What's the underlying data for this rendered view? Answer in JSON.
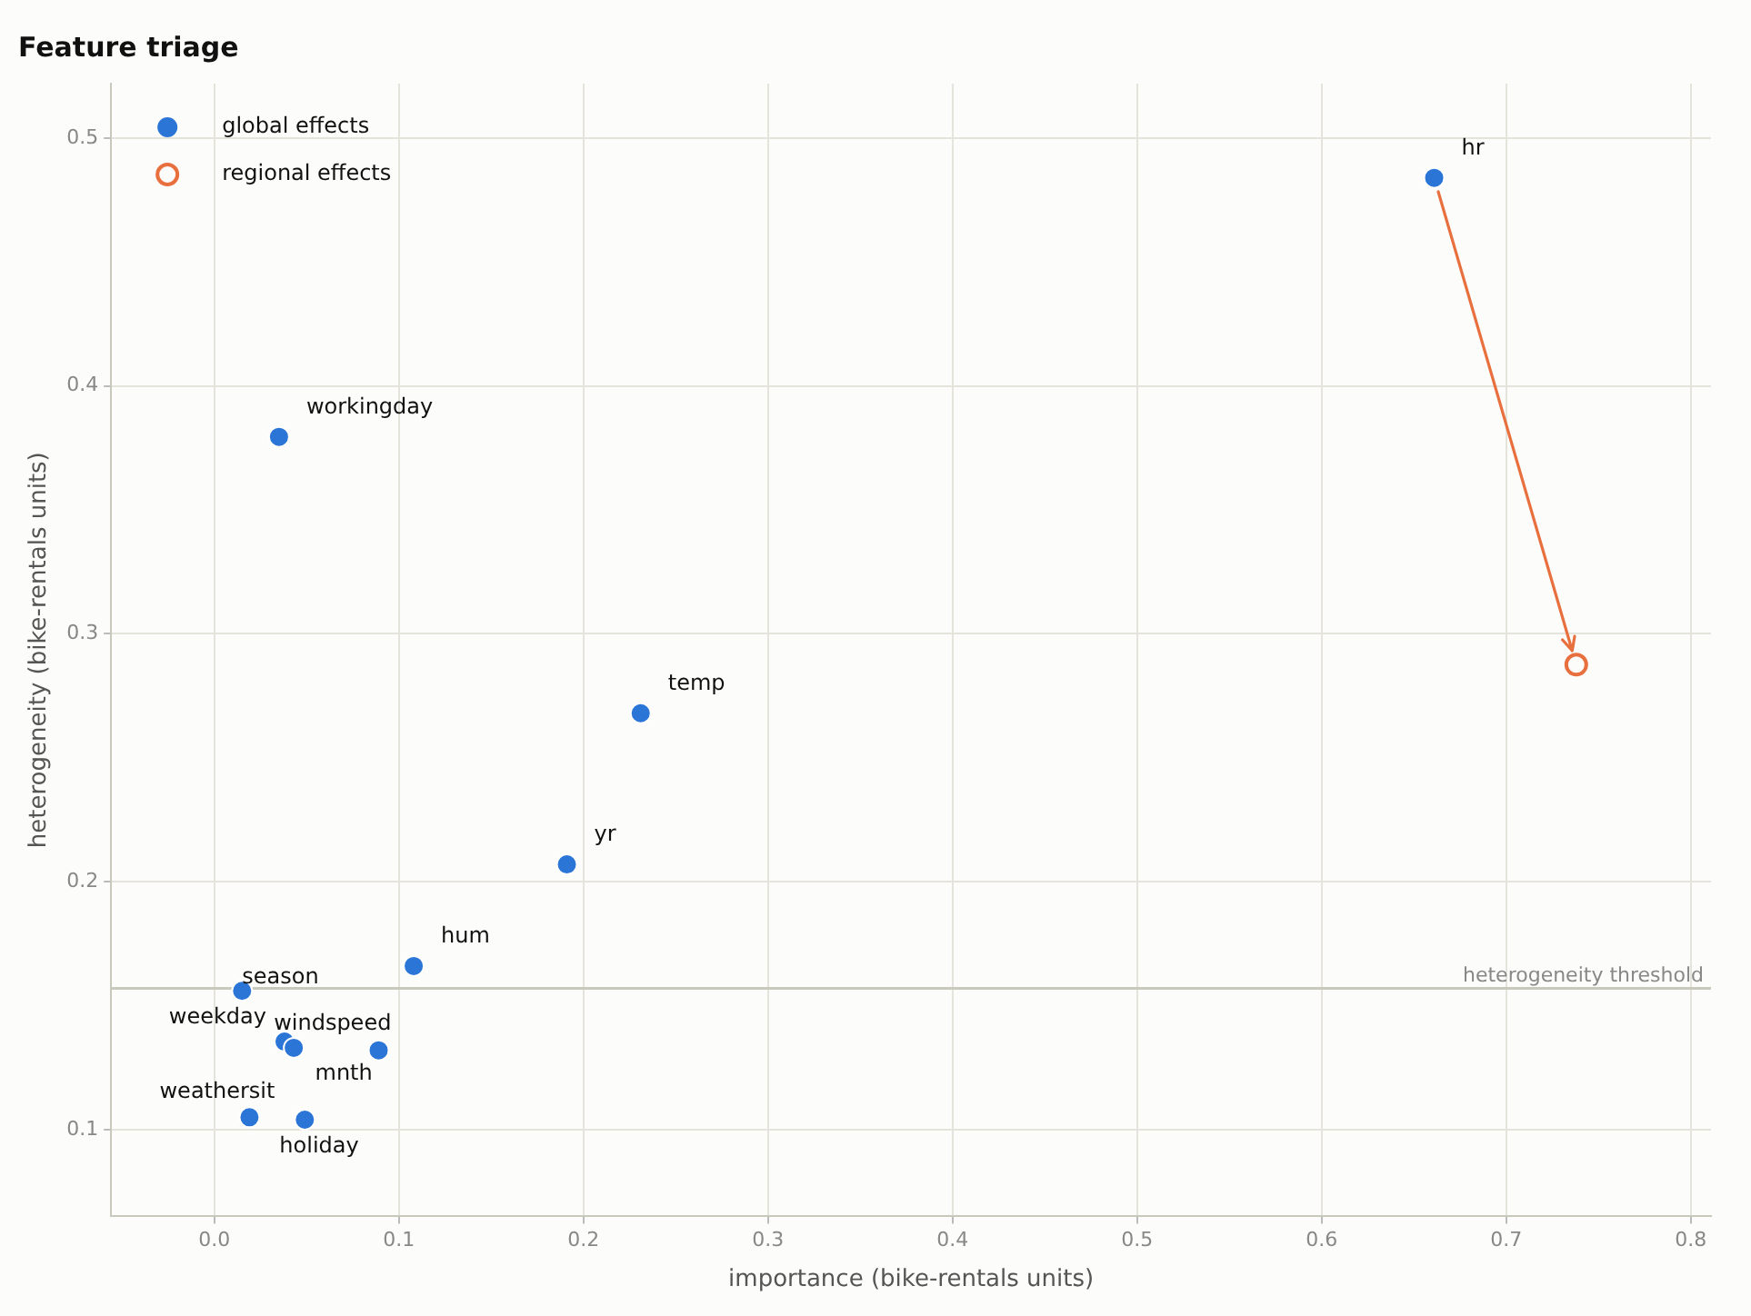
{
  "chart_data": {
    "type": "scatter",
    "title": "Feature triage",
    "xlabel": "importance (bike-rentals units)",
    "ylabel": "heterogeneity (bike-rentals units)",
    "xlim": [
      -0.056,
      0.811
    ],
    "ylim": [
      0.065,
      0.522
    ],
    "xticks": [
      {
        "value": 0,
        "label": "0.0"
      },
      0.1,
      0.2,
      0.3,
      0.4,
      0.5,
      0.6,
      0.7,
      0.8
    ],
    "yticks": [
      0.1,
      0.2,
      0.3,
      0.4,
      0.5
    ],
    "grid": true,
    "legend": "top left",
    "marker": "circle",
    "series": [
      {
        "name": "global effects",
        "color": "#2a75d6",
        "x": [
          0.661,
          0.035,
          0.231,
          0.191,
          0.108,
          0.015,
          0.038,
          0.043,
          0.089,
          0.019,
          0.049
        ],
        "values": [
          0.484,
          0.3795,
          0.268,
          0.207,
          0.166,
          0.156,
          0.1355,
          0.133,
          0.132,
          0.105,
          0.104
        ]
      },
      {
        "name": "regional effects",
        "color": "#e8703f",
        "x": [
          0.738
        ],
        "values": [
          0.2876
        ]
      }
    ],
    "ref_lines": [
      {
        "axis": "y",
        "value": 0.157,
        "label": "heterogeneity threshold",
        "color": "#c8c8bc"
      }
    ],
    "annotations": [
      {
        "text": "hr",
        "x": 0.661,
        "y": 0.484
      },
      {
        "text": "workingday",
        "x": 0.035,
        "y": 0.3795
      },
      {
        "text": "temp",
        "x": 0.231,
        "y": 0.268
      },
      {
        "text": "yr",
        "x": 0.191,
        "y": 0.207
      },
      {
        "text": "hum",
        "x": 0.108,
        "y": 0.166
      },
      {
        "text": "season",
        "x": 0.015,
        "y": 0.156
      },
      {
        "text": "weekday",
        "x": 0.038,
        "y": 0.1355
      },
      {
        "text": "windspeed",
        "x": 0.043,
        "y": 0.133
      },
      {
        "text": "mnth",
        "x": 0.089,
        "y": 0.132
      },
      {
        "text": "weathersit",
        "x": 0.019,
        "y": 0.105
      },
      {
        "text": "holiday",
        "x": 0.049,
        "y": 0.104
      }
    ]
  }
}
